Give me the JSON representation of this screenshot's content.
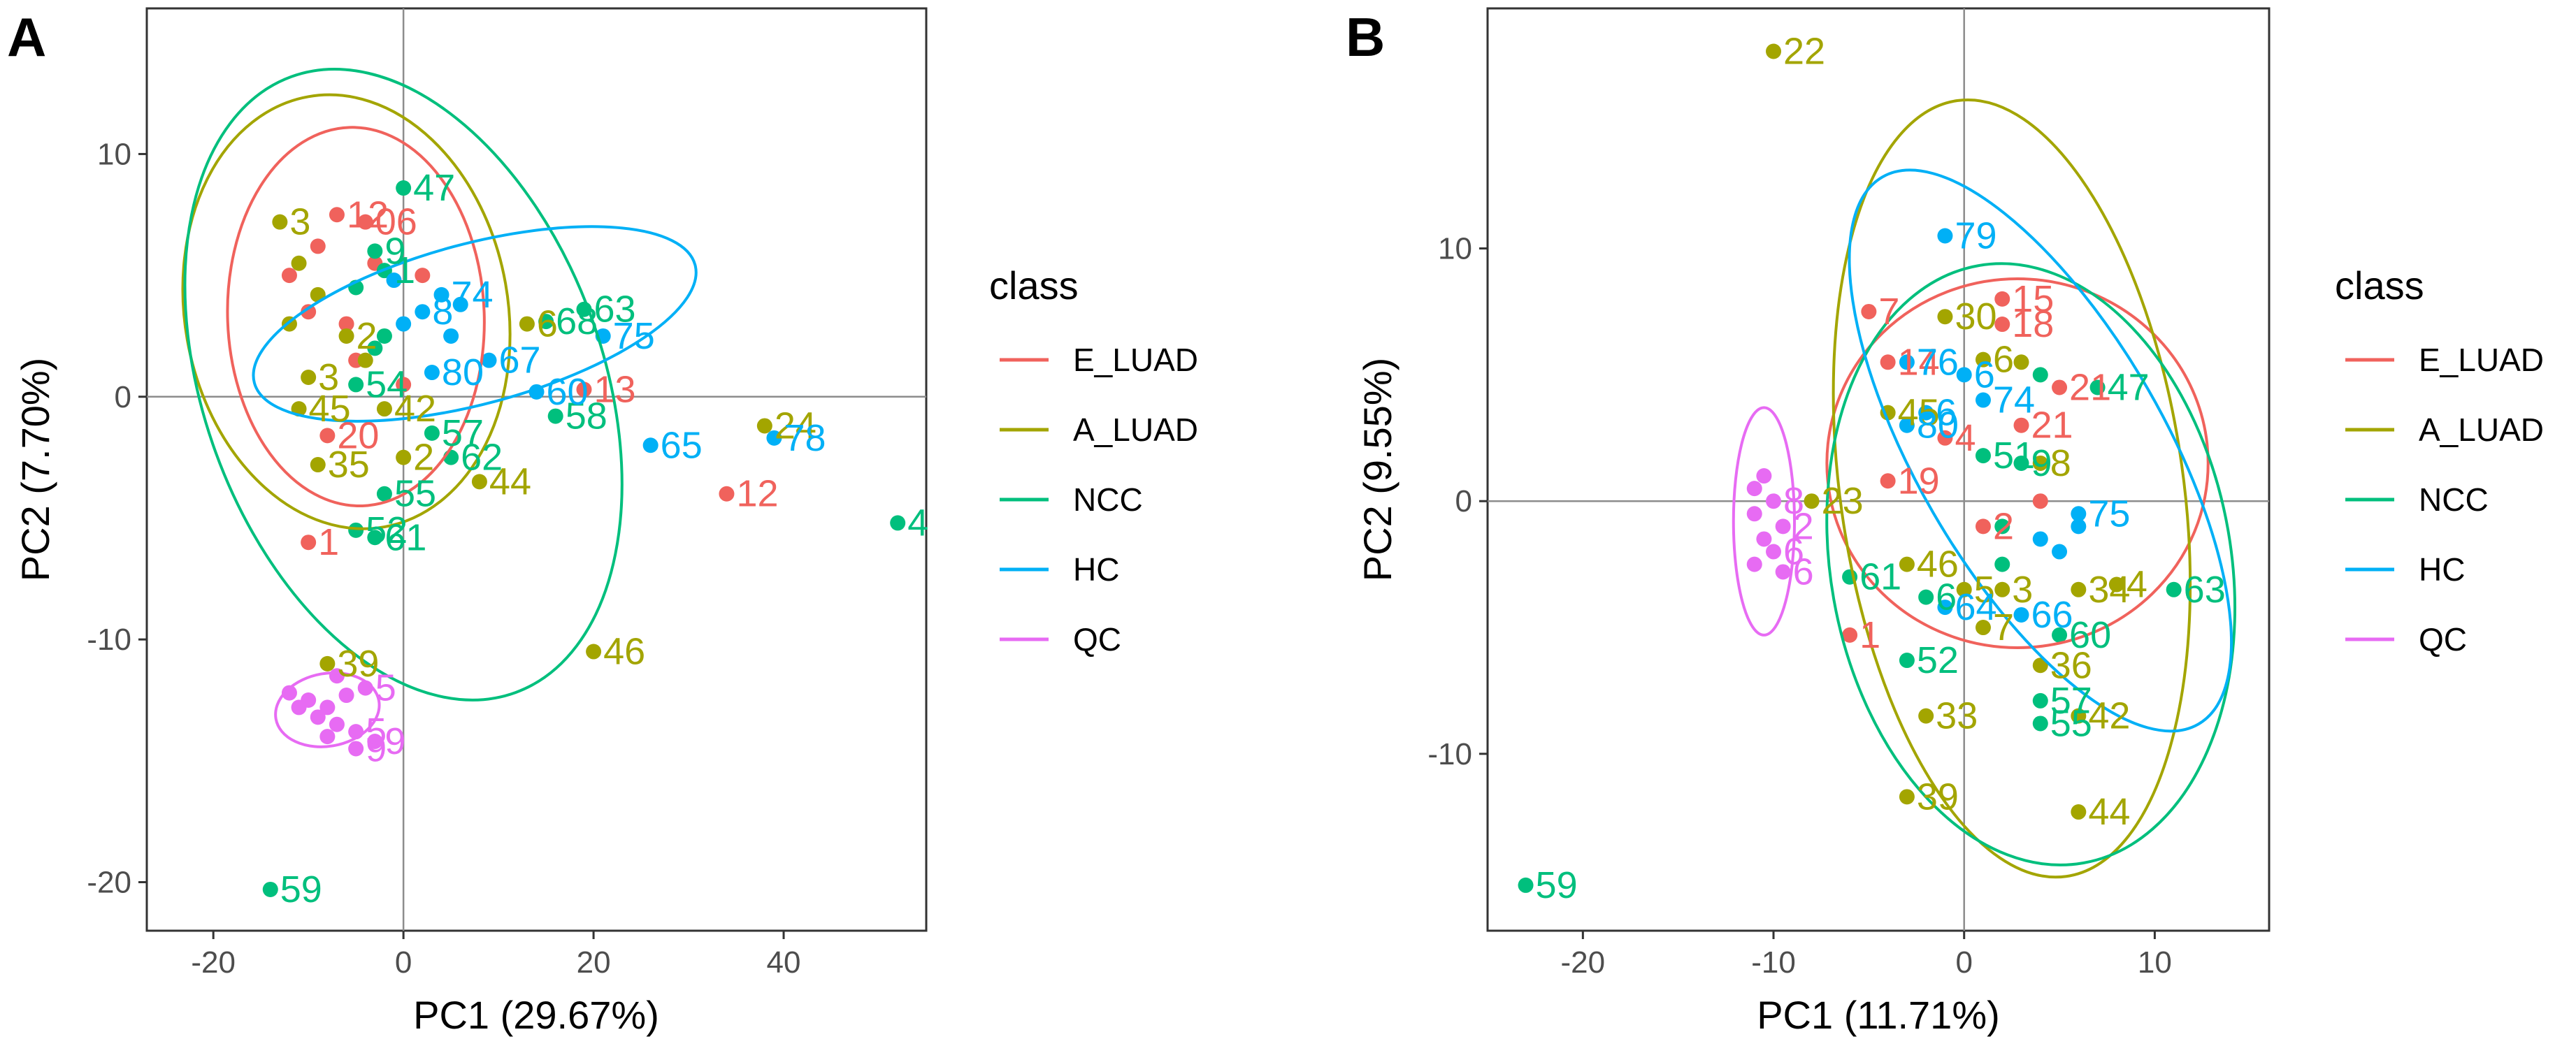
{
  "colors": {
    "E_LUAD": "#f0625c",
    "A_LUAD": "#a3a500",
    "NCC": "#00bf7d",
    "HC": "#00b0f6",
    "QC": "#e76bf3"
  },
  "legend": {
    "title": "class",
    "entries": [
      "E_LUAD",
      "A_LUAD",
      "NCC",
      "HC",
      "QC"
    ]
  },
  "chart_data": [
    {
      "panel": "A",
      "type": "scatter",
      "xlabel": "PC1 (29.67%)",
      "ylabel": "PC2 (7.70%)",
      "xlim": [
        -27,
        55
      ],
      "ylim": [
        -22,
        16
      ],
      "xticks": [
        -20,
        0,
        20,
        40
      ],
      "yticks": [
        -20,
        -10,
        0,
        10
      ],
      "points": [
        {
          "c": "E_LUAD",
          "x": -7,
          "y": 7.5,
          "l": "12"
        },
        {
          "c": "E_LUAD",
          "x": -4,
          "y": 7.2,
          "l": "06"
        },
        {
          "c": "E_LUAD",
          "x": -9,
          "y": 6.2,
          "l": ""
        },
        {
          "c": "E_LUAD",
          "x": -12,
          "y": 5,
          "l": ""
        },
        {
          "c": "E_LUAD",
          "x": -10,
          "y": 3.5,
          "l": ""
        },
        {
          "c": "E_LUAD",
          "x": -6,
          "y": 3,
          "l": ""
        },
        {
          "c": "E_LUAD",
          "x": 0,
          "y": 0.5,
          "l": ""
        },
        {
          "c": "E_LUAD",
          "x": -5,
          "y": 1.5,
          "l": ""
        },
        {
          "c": "E_LUAD",
          "x": -8,
          "y": -1.6,
          "l": "20"
        },
        {
          "c": "E_LUAD",
          "x": 19,
          "y": 0.3,
          "l": "13"
        },
        {
          "c": "E_LUAD",
          "x": 34,
          "y": -4,
          "l": "12"
        },
        {
          "c": "E_LUAD",
          "x": -10,
          "y": -6,
          "l": "1"
        },
        {
          "c": "E_LUAD",
          "x": 2,
          "y": 5,
          "l": ""
        },
        {
          "c": "E_LUAD",
          "x": -3,
          "y": 5.5,
          "l": ""
        },
        {
          "c": "A_LUAD",
          "x": -13,
          "y": 7.2,
          "l": "3"
        },
        {
          "c": "A_LUAD",
          "x": -11,
          "y": 5.5,
          "l": ""
        },
        {
          "c": "A_LUAD",
          "x": -12,
          "y": 3,
          "l": ""
        },
        {
          "c": "A_LUAD",
          "x": -9,
          "y": 4.2,
          "l": ""
        },
        {
          "c": "A_LUAD",
          "x": -10,
          "y": 0.8,
          "l": "3"
        },
        {
          "c": "A_LUAD",
          "x": -11,
          "y": -0.5,
          "l": "45"
        },
        {
          "c": "A_LUAD",
          "x": -2,
          "y": -0.5,
          "l": "42"
        },
        {
          "c": "A_LUAD",
          "x": -9,
          "y": -2.8,
          "l": "35"
        },
        {
          "c": "A_LUAD",
          "x": 0,
          "y": -2.5,
          "l": "2"
        },
        {
          "c": "A_LUAD",
          "x": 8,
          "y": -3.5,
          "l": "44"
        },
        {
          "c": "A_LUAD",
          "x": -8,
          "y": -11,
          "l": "39"
        },
        {
          "c": "A_LUAD",
          "x": 20,
          "y": -10.5,
          "l": "46"
        },
        {
          "c": "A_LUAD",
          "x": 38,
          "y": -1.2,
          "l": "24"
        },
        {
          "c": "A_LUAD",
          "x": 13,
          "y": 3,
          "l": "6"
        },
        {
          "c": "A_LUAD",
          "x": -6,
          "y": 2.5,
          "l": "2"
        },
        {
          "c": "A_LUAD",
          "x": -4,
          "y": 1.5,
          "l": ""
        },
        {
          "c": "NCC",
          "x": 0,
          "y": 8.6,
          "l": "47"
        },
        {
          "c": "NCC",
          "x": -3,
          "y": 6,
          "l": "9"
        },
        {
          "c": "NCC",
          "x": -2,
          "y": 5.2,
          "l": "1"
        },
        {
          "c": "NCC",
          "x": -5,
          "y": 4.5,
          "l": ""
        },
        {
          "c": "NCC",
          "x": -3,
          "y": 2,
          "l": ""
        },
        {
          "c": "NCC",
          "x": -5,
          "y": 0.5,
          "l": "54"
        },
        {
          "c": "NCC",
          "x": 19,
          "y": 3.6,
          "l": "63"
        },
        {
          "c": "NCC",
          "x": 15,
          "y": 3.1,
          "l": "68"
        },
        {
          "c": "NCC",
          "x": 16,
          "y": -0.8,
          "l": "58"
        },
        {
          "c": "NCC",
          "x": 3,
          "y": -1.5,
          "l": "57"
        },
        {
          "c": "NCC",
          "x": 5,
          "y": -2.5,
          "l": "62"
        },
        {
          "c": "NCC",
          "x": -2,
          "y": -4,
          "l": "55"
        },
        {
          "c": "NCC",
          "x": -5,
          "y": -5.5,
          "l": "52"
        },
        {
          "c": "NCC",
          "x": -3,
          "y": -5.8,
          "l": "61"
        },
        {
          "c": "NCC",
          "x": -14,
          "y": -20.3,
          "l": "59"
        },
        {
          "c": "NCC",
          "x": 52,
          "y": -5.2,
          "l": "4"
        },
        {
          "c": "NCC",
          "x": -2,
          "y": 2.5,
          "l": ""
        },
        {
          "c": "HC",
          "x": 4,
          "y": 4.2,
          "l": "74"
        },
        {
          "c": "HC",
          "x": 2,
          "y": 3.5,
          "l": "8"
        },
        {
          "c": "HC",
          "x": 5,
          "y": 2.5,
          "l": ""
        },
        {
          "c": "HC",
          "x": 9,
          "y": 1.5,
          "l": "67"
        },
        {
          "c": "HC",
          "x": 3,
          "y": 1,
          "l": "80"
        },
        {
          "c": "HC",
          "x": 0,
          "y": 3,
          "l": ""
        },
        {
          "c": "HC",
          "x": 21,
          "y": 2.5,
          "l": "75"
        },
        {
          "c": "HC",
          "x": 14,
          "y": 0.2,
          "l": "60"
        },
        {
          "c": "HC",
          "x": 26,
          "y": -2,
          "l": "65"
        },
        {
          "c": "HC",
          "x": 39,
          "y": -1.7,
          "l": "78"
        },
        {
          "c": "HC",
          "x": -1,
          "y": 4.8,
          "l": ""
        },
        {
          "c": "HC",
          "x": 6,
          "y": 3.8,
          "l": ""
        },
        {
          "c": "QC",
          "x": -12,
          "y": -12.2,
          "l": ""
        },
        {
          "c": "QC",
          "x": -10,
          "y": -12.5,
          "l": ""
        },
        {
          "c": "QC",
          "x": -8,
          "y": -12.8,
          "l": ""
        },
        {
          "c": "QC",
          "x": -6,
          "y": -12.3,
          "l": ""
        },
        {
          "c": "QC",
          "x": -4,
          "y": -12,
          "l": "5"
        },
        {
          "c": "QC",
          "x": -9,
          "y": -13.2,
          "l": ""
        },
        {
          "c": "QC",
          "x": -7,
          "y": -13.5,
          "l": ""
        },
        {
          "c": "QC",
          "x": -5,
          "y": -13.8,
          "l": "5"
        },
        {
          "c": "QC",
          "x": -8,
          "y": -14,
          "l": ""
        },
        {
          "c": "QC",
          "x": -5,
          "y": -14.5,
          "l": "9"
        },
        {
          "c": "QC",
          "x": -3,
          "y": -14.2,
          "l": "9"
        },
        {
          "c": "QC",
          "x": -11,
          "y": -12.8,
          "l": ""
        },
        {
          "c": "QC",
          "x": -7,
          "y": -11.5,
          "l": ""
        }
      ],
      "ellipses": [
        {
          "c": "E_LUAD",
          "cx": -5,
          "cy": 3.3,
          "rx": 13.5,
          "ry": 7.8,
          "rot": -2
        },
        {
          "c": "A_LUAD",
          "cx": -6,
          "cy": 3.5,
          "rx": 17,
          "ry": 9,
          "rot": -10
        },
        {
          "c": "NCC",
          "cx": 0,
          "cy": 0.5,
          "rx": 21,
          "ry": 13.5,
          "rot": -20
        },
        {
          "c": "HC",
          "cx": 7.5,
          "cy": 3,
          "rx": 24,
          "ry": 3.3,
          "rot": -15
        },
        {
          "c": "QC",
          "cx": -8,
          "cy": -12.9,
          "rx": 5.5,
          "ry": 1.5,
          "rot": -10
        }
      ]
    },
    {
      "panel": "B",
      "type": "scatter",
      "xlabel": "PC1 (11.71%)",
      "ylabel": "PC2 (9.55%)",
      "xlim": [
        -25,
        16
      ],
      "ylim": [
        -17,
        19.5
      ],
      "xticks": [
        -20,
        -10,
        0,
        10
      ],
      "yticks": [
        -10,
        0,
        10
      ],
      "points": [
        {
          "c": "E_LUAD",
          "x": -5,
          "y": 7.5,
          "l": "7"
        },
        {
          "c": "E_LUAD",
          "x": 2,
          "y": 8,
          "l": "15"
        },
        {
          "c": "E_LUAD",
          "x": 2,
          "y": 7,
          "l": "18"
        },
        {
          "c": "E_LUAD",
          "x": -4,
          "y": 5.5,
          "l": "14"
        },
        {
          "c": "E_LUAD",
          "x": 5,
          "y": 4.5,
          "l": "21"
        },
        {
          "c": "E_LUAD",
          "x": 3,
          "y": 3,
          "l": "21"
        },
        {
          "c": "E_LUAD",
          "x": -4,
          "y": 0.8,
          "l": "19"
        },
        {
          "c": "E_LUAD",
          "x": 1,
          "y": -1,
          "l": "2"
        },
        {
          "c": "E_LUAD",
          "x": -6,
          "y": -5.3,
          "l": "1"
        },
        {
          "c": "E_LUAD",
          "x": -1,
          "y": 2.5,
          "l": "4"
        },
        {
          "c": "E_LUAD",
          "x": 4,
          "y": 0,
          "l": ""
        },
        {
          "c": "A_LUAD",
          "x": -10,
          "y": 17.8,
          "l": "22"
        },
        {
          "c": "A_LUAD",
          "x": -1,
          "y": 7.3,
          "l": "30"
        },
        {
          "c": "A_LUAD",
          "x": 1,
          "y": 5.6,
          "l": "6"
        },
        {
          "c": "A_LUAD",
          "x": 3,
          "y": 5.5,
          "l": ""
        },
        {
          "c": "A_LUAD",
          "x": -4,
          "y": 3.5,
          "l": "45"
        },
        {
          "c": "A_LUAD",
          "x": 4,
          "y": 1.5,
          "l": "8"
        },
        {
          "c": "A_LUAD",
          "x": -8,
          "y": 0,
          "l": "23"
        },
        {
          "c": "A_LUAD",
          "x": 0,
          "y": -3.5,
          "l": "5"
        },
        {
          "c": "A_LUAD",
          "x": 2,
          "y": -3.5,
          "l": "3"
        },
        {
          "c": "A_LUAD",
          "x": 6,
          "y": -3.5,
          "l": "34"
        },
        {
          "c": "A_LUAD",
          "x": 4,
          "y": -6.5,
          "l": "36"
        },
        {
          "c": "A_LUAD",
          "x": -2,
          "y": -8.5,
          "l": "33"
        },
        {
          "c": "A_LUAD",
          "x": 6,
          "y": -8.5,
          "l": "42"
        },
        {
          "c": "A_LUAD",
          "x": -3,
          "y": -11.7,
          "l": "39"
        },
        {
          "c": "A_LUAD",
          "x": 6,
          "y": -12.3,
          "l": "44"
        },
        {
          "c": "A_LUAD",
          "x": 8,
          "y": -3.3,
          "l": "4"
        },
        {
          "c": "A_LUAD",
          "x": -3,
          "y": -2.5,
          "l": "46"
        },
        {
          "c": "A_LUAD",
          "x": 1,
          "y": -5,
          "l": "7"
        },
        {
          "c": "NCC",
          "x": 7,
          "y": 4.5,
          "l": "47"
        },
        {
          "c": "NCC",
          "x": 4,
          "y": 5,
          "l": ""
        },
        {
          "c": "NCC",
          "x": 1,
          "y": 1.8,
          "l": "51"
        },
        {
          "c": "NCC",
          "x": 3,
          "y": 1.5,
          "l": "9"
        },
        {
          "c": "NCC",
          "x": 2,
          "y": -1,
          "l": ""
        },
        {
          "c": "NCC",
          "x": -6,
          "y": -3,
          "l": "61"
        },
        {
          "c": "NCC",
          "x": -2,
          "y": -3.8,
          "l": "6"
        },
        {
          "c": "NCC",
          "x": 11,
          "y": -3.5,
          "l": "63"
        },
        {
          "c": "NCC",
          "x": 5,
          "y": -5.3,
          "l": "60"
        },
        {
          "c": "NCC",
          "x": -3,
          "y": -6.3,
          "l": "52"
        },
        {
          "c": "NCC",
          "x": 4,
          "y": -7.9,
          "l": "57"
        },
        {
          "c": "NCC",
          "x": 4,
          "y": -8.8,
          "l": "55"
        },
        {
          "c": "NCC",
          "x": -23,
          "y": -15.2,
          "l": "59"
        },
        {
          "c": "NCC",
          "x": 2,
          "y": -2.5,
          "l": ""
        },
        {
          "c": "HC",
          "x": -1,
          "y": 10.5,
          "l": "79"
        },
        {
          "c": "HC",
          "x": -3,
          "y": 5.5,
          "l": "76"
        },
        {
          "c": "HC",
          "x": 0,
          "y": 5,
          "l": "6"
        },
        {
          "c": "HC",
          "x": 1,
          "y": 4,
          "l": "74"
        },
        {
          "c": "HC",
          "x": -3,
          "y": 3,
          "l": "80"
        },
        {
          "c": "HC",
          "x": -2,
          "y": 3.5,
          "l": "6"
        },
        {
          "c": "HC",
          "x": 6,
          "y": -0.5,
          "l": "75"
        },
        {
          "c": "HC",
          "x": 4,
          "y": -1.5,
          "l": ""
        },
        {
          "c": "HC",
          "x": 5,
          "y": -2,
          "l": ""
        },
        {
          "c": "HC",
          "x": -1,
          "y": -4.2,
          "l": "64"
        },
        {
          "c": "HC",
          "x": 3,
          "y": -4.5,
          "l": "66"
        },
        {
          "c": "HC",
          "x": 6,
          "y": -1,
          "l": ""
        },
        {
          "c": "QC",
          "x": -11,
          "y": 0.5,
          "l": ""
        },
        {
          "c": "QC",
          "x": -10,
          "y": 0,
          "l": "8"
        },
        {
          "c": "QC",
          "x": -11,
          "y": -0.5,
          "l": ""
        },
        {
          "c": "QC",
          "x": -9.5,
          "y": -1,
          "l": "2"
        },
        {
          "c": "QC",
          "x": -10.5,
          "y": -1.5,
          "l": ""
        },
        {
          "c": "QC",
          "x": -10,
          "y": -2,
          "l": "6"
        },
        {
          "c": "QC",
          "x": -11,
          "y": -2.5,
          "l": ""
        },
        {
          "c": "QC",
          "x": -9.5,
          "y": -2.8,
          "l": "6"
        },
        {
          "c": "QC",
          "x": -10.5,
          "y": 1,
          "l": ""
        }
      ],
      "ellipses": [
        {
          "c": "E_LUAD",
          "cx": 2.8,
          "cy": 1.5,
          "rx": 10,
          "ry": 7.3,
          "rot": 0
        },
        {
          "c": "A_LUAD",
          "cx": 2.5,
          "cy": 0.5,
          "rx": 9,
          "ry": 15.5,
          "rot": -8
        },
        {
          "c": "NCC",
          "cx": 3.5,
          "cy": -2.5,
          "rx": 10.5,
          "ry": 12,
          "rot": -10
        },
        {
          "c": "HC",
          "cx": 4,
          "cy": 2,
          "rx": 6.5,
          "ry": 12.5,
          "rot": -30
        },
        {
          "c": "QC",
          "cx": -10.5,
          "cy": -0.8,
          "rx": 1.6,
          "ry": 4.5,
          "rot": 0
        }
      ]
    }
  ]
}
